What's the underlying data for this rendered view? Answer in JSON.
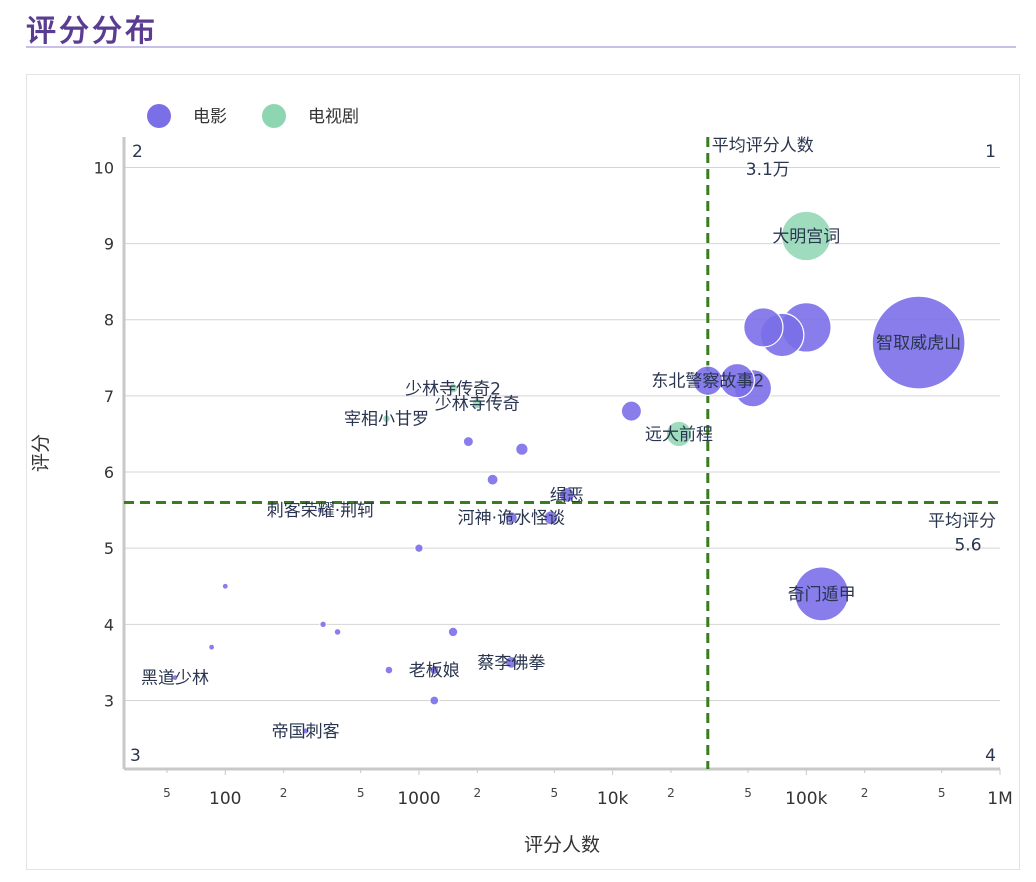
{
  "page": {
    "title": "评分分布"
  },
  "chart_data": {
    "type": "scatter",
    "xscale": "log",
    "xlim": [
      30,
      1000000
    ],
    "ylim": [
      2.1,
      10.4
    ],
    "xlabel": "评分人数",
    "ylabel": "评分",
    "x_tick_values": [
      100,
      1000,
      10000,
      100000,
      1000000
    ],
    "x_tick_labels": [
      "100",
      "1000",
      "10k",
      "100k",
      "1M"
    ],
    "x_minor_ticks": [
      {
        "v": 50,
        "t": "5"
      },
      {
        "v": 200,
        "t": "2"
      },
      {
        "v": 500,
        "t": "5"
      },
      {
        "v": 2000,
        "t": "2"
      },
      {
        "v": 5000,
        "t": "5"
      },
      {
        "v": 20000,
        "t": "2"
      },
      {
        "v": 50000,
        "t": "5"
      },
      {
        "v": 200000,
        "t": "2"
      },
      {
        "v": 500000,
        "t": "5"
      }
    ],
    "y_tick_values": [
      3,
      4,
      5,
      6,
      7,
      8,
      9,
      10
    ],
    "y_tick_labels": [
      "3",
      "4",
      "5",
      "6",
      "7",
      "8",
      "9",
      "10"
    ],
    "legend": {
      "position": "top-left",
      "entries": [
        {
          "name": "电影",
          "color": "#7b6fe8"
        },
        {
          "name": "电视剧",
          "color": "#8ed6b1"
        }
      ]
    },
    "ref_lines": {
      "mean_x": 31000,
      "mean_x_label": "平均评分人数",
      "mean_x_value": "3.1万",
      "mean_y": 5.6,
      "mean_y_label": "平均评分",
      "mean_y_value": "5.6",
      "color": "#3a7d1e"
    },
    "quadrants": [
      "1",
      "2",
      "3",
      "4"
    ],
    "series": [
      {
        "name": "电影",
        "color": "#7b6fe8",
        "points": [
          {
            "x": 380000,
            "y": 7.7,
            "size": 380000,
            "label": "智取威虎山"
          },
          {
            "x": 100000,
            "y": 7.9,
            "size": 100000,
            "label": ""
          },
          {
            "x": 75000,
            "y": 7.8,
            "size": 75000,
            "label": ""
          },
          {
            "x": 60000,
            "y": 7.9,
            "size": 60000,
            "label": ""
          },
          {
            "x": 53000,
            "y": 7.1,
            "size": 53000,
            "label": ""
          },
          {
            "x": 44000,
            "y": 7.2,
            "size": 44000,
            "label": ""
          },
          {
            "x": 31000,
            "y": 7.2,
            "size": 31000,
            "label": "东北警察故事2"
          },
          {
            "x": 12500,
            "y": 6.8,
            "size": 12500,
            "label": ""
          },
          {
            "x": 120000,
            "y": 4.4,
            "size": 120000,
            "label": "奇门遁甲"
          },
          {
            "x": 5800,
            "y": 5.7,
            "size": 5800,
            "label": "缉恶"
          },
          {
            "x": 4800,
            "y": 5.4,
            "size": 4800,
            "label": ""
          },
          {
            "x": 3000,
            "y": 5.4,
            "size": 3000,
            "label": "河神·诡水怪谈"
          },
          {
            "x": 3400,
            "y": 6.3,
            "size": 3400,
            "label": ""
          },
          {
            "x": 2400,
            "y": 5.9,
            "size": 2400,
            "label": ""
          },
          {
            "x": 1800,
            "y": 6.4,
            "size": 1800,
            "label": ""
          },
          {
            "x": 1000,
            "y": 5.0,
            "size": 1000,
            "label": ""
          },
          {
            "x": 1500,
            "y": 3.9,
            "size": 1500,
            "label": ""
          },
          {
            "x": 3000,
            "y": 3.5,
            "size": 3000,
            "label": "蔡李佛拳"
          },
          {
            "x": 1200,
            "y": 3.4,
            "size": 1200,
            "label": "老板娘"
          },
          {
            "x": 700,
            "y": 3.4,
            "size": 700,
            "label": ""
          },
          {
            "x": 1200,
            "y": 3.0,
            "size": 1200,
            "label": ""
          },
          {
            "x": 380,
            "y": 3.9,
            "size": 380,
            "label": ""
          },
          {
            "x": 320,
            "y": 4.0,
            "size": 320,
            "label": ""
          },
          {
            "x": 310,
            "y": 5.5,
            "size": 310,
            "label": "刺客荣耀·荆轲"
          },
          {
            "x": 100,
            "y": 4.5,
            "size": 100,
            "label": ""
          },
          {
            "x": 85,
            "y": 3.7,
            "size": 85,
            "label": ""
          },
          {
            "x": 55,
            "y": 3.3,
            "size": 55,
            "label": "黑道少林"
          },
          {
            "x": 260,
            "y": 2.6,
            "size": 260,
            "label": "帝国刺客"
          }
        ]
      },
      {
        "name": "电视剧",
        "color": "#8ed6b1",
        "points": [
          {
            "x": 100000,
            "y": 9.1,
            "size": 100000,
            "label": "大明宫词"
          },
          {
            "x": 22000,
            "y": 6.5,
            "size": 22000,
            "label": "远大前程"
          },
          {
            "x": 2000,
            "y": 6.9,
            "size": 2000,
            "label": "少林寺传奇"
          },
          {
            "x": 1500,
            "y": 7.1,
            "size": 1500,
            "label": "少林寺传奇2"
          },
          {
            "x": 680,
            "y": 6.7,
            "size": 680,
            "label": "宰相小甘罗"
          }
        ]
      }
    ]
  }
}
